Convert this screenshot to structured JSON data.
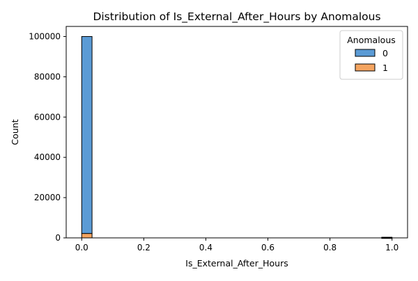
{
  "chart_data": {
    "type": "bar",
    "title": "Distribution of Is_External_After_Hours by Anomalous",
    "xlabel": "Is_External_After_Hours",
    "ylabel": "Count",
    "xlim": [
      -0.05,
      1.05
    ],
    "ylim": [
      0,
      105000
    ],
    "xticks": [
      0.0,
      0.2,
      0.4,
      0.6,
      0.8,
      1.0
    ],
    "xtick_labels": [
      "0.0",
      "0.2",
      "0.4",
      "0.6",
      "0.8",
      "1.0"
    ],
    "yticks": [
      0,
      20000,
      40000,
      60000,
      80000,
      100000
    ],
    "ytick_labels": [
      "0",
      "20000",
      "40000",
      "60000",
      "80000",
      "100000"
    ],
    "bins": 30,
    "bin_width": 0.0333,
    "stacked": true,
    "legend": {
      "title": "Anomalous",
      "placement": "top-right"
    },
    "series": [
      {
        "name": "0",
        "color": "#5b9bd5",
        "bars": [
          {
            "x": 0.0,
            "value": 97800
          },
          {
            "x": 0.9667,
            "value": 300
          }
        ]
      },
      {
        "name": "1",
        "color": "#f4a460",
        "bars": [
          {
            "x": 0.0,
            "value": 2200
          },
          {
            "x": 0.9667,
            "value": 20
          }
        ]
      }
    ]
  }
}
